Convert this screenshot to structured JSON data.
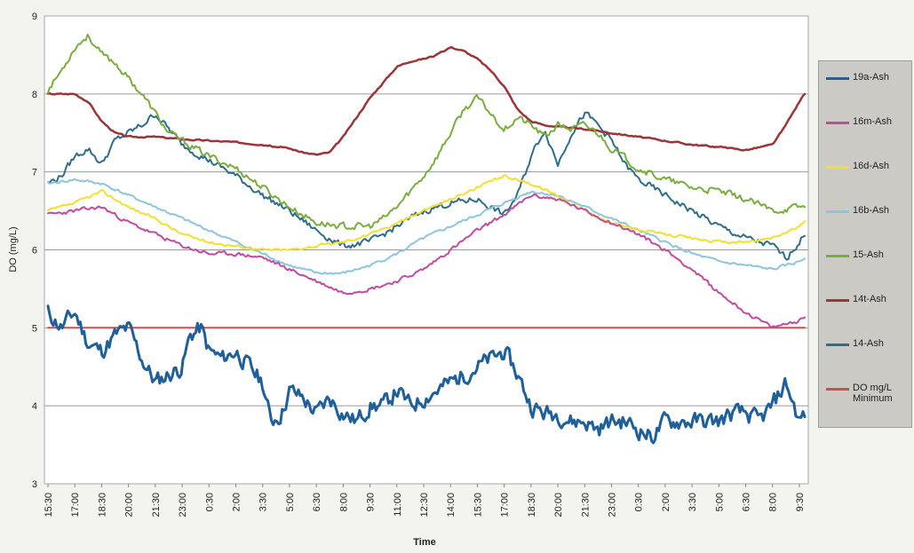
{
  "chart_data": {
    "type": "line",
    "xlabel": "Time",
    "ylabel": "DO (mg/L)",
    "ylim": [
      3,
      9
    ],
    "yticks": [
      3,
      4,
      5,
      6,
      7,
      8,
      9
    ],
    "grid": "horizontal",
    "legend_position": "right",
    "x_tick_labels": [
      "15:30",
      "17:00",
      "18:30",
      "20:00",
      "21:30",
      "23:00",
      "0:30",
      "2:00",
      "3:30",
      "5:00",
      "6:30",
      "8:00",
      "9:30",
      "11:00",
      "12:30",
      "14:00",
      "15:30",
      "17:00",
      "18:30",
      "20:00",
      "21:30",
      "23:00",
      "0:30",
      "2:00",
      "3:30",
      "5:00",
      "6:30",
      "8:00",
      "9:30"
    ],
    "x_label_positions": [
      0,
      1,
      2,
      3,
      4,
      5,
      6,
      7,
      8,
      9,
      10,
      11,
      12,
      13,
      14,
      15,
      16,
      17,
      18,
      19,
      20,
      21,
      22,
      23,
      24,
      25,
      26,
      27,
      28
    ],
    "x_range": [
      0,
      28.2
    ],
    "series": [
      {
        "name": "19a-Ash",
        "color": "#1f5f9a",
        "width": 3,
        "noise": 0.18,
        "seed": 11,
        "points": [
          [
            0,
            5.2
          ],
          [
            0.5,
            5.0
          ],
          [
            1,
            5.2
          ],
          [
            1.5,
            4.8
          ],
          [
            2,
            4.7
          ],
          [
            2.5,
            4.9
          ],
          [
            3,
            5.0
          ],
          [
            3.5,
            4.6
          ],
          [
            4,
            4.3
          ],
          [
            4.5,
            4.4
          ],
          [
            5,
            4.5
          ],
          [
            5.3,
            4.9
          ],
          [
            5.7,
            5.0
          ],
          [
            6,
            4.7
          ],
          [
            6.5,
            4.6
          ],
          [
            7,
            4.7
          ],
          [
            7.5,
            4.5
          ],
          [
            8,
            4.3
          ],
          [
            8.3,
            3.8
          ],
          [
            8.7,
            3.9
          ],
          [
            9,
            4.2
          ],
          [
            9.5,
            4.1
          ],
          [
            10,
            3.9
          ],
          [
            10.5,
            4.1
          ],
          [
            11,
            3.9
          ],
          [
            11.5,
            3.8
          ],
          [
            12,
            4.0
          ],
          [
            12.5,
            4.0
          ],
          [
            13,
            4.2
          ],
          [
            13.5,
            4.0
          ],
          [
            14,
            4.1
          ],
          [
            14.5,
            4.2
          ],
          [
            15,
            4.3
          ],
          [
            15.5,
            4.4
          ],
          [
            16,
            4.5
          ],
          [
            16.5,
            4.6
          ],
          [
            17,
            4.7
          ],
          [
            17.5,
            4.4
          ],
          [
            18,
            4.0
          ],
          [
            18.5,
            3.9
          ],
          [
            19,
            3.9
          ],
          [
            19.5,
            3.8
          ],
          [
            20,
            3.8
          ],
          [
            20.5,
            3.7
          ],
          [
            21,
            3.8
          ],
          [
            21.5,
            3.8
          ],
          [
            22,
            3.7
          ],
          [
            22.5,
            3.6
          ],
          [
            23,
            3.8
          ],
          [
            23.5,
            3.8
          ],
          [
            24,
            3.8
          ],
          [
            24.5,
            3.8
          ],
          [
            25,
            3.8
          ],
          [
            25.5,
            3.9
          ],
          [
            26,
            3.9
          ],
          [
            26.5,
            3.8
          ],
          [
            27,
            4.0
          ],
          [
            27.5,
            4.3
          ],
          [
            28,
            3.8
          ],
          [
            28.2,
            3.9
          ]
        ]
      },
      {
        "name": "16m-Ash",
        "color": "#c24aa0",
        "width": 2,
        "noise": 0.04,
        "seed": 23,
        "points": [
          [
            0,
            6.45
          ],
          [
            1,
            6.5
          ],
          [
            2,
            6.55
          ],
          [
            3,
            6.35
          ],
          [
            4,
            6.2
          ],
          [
            5,
            6.05
          ],
          [
            6,
            5.95
          ],
          [
            7,
            5.95
          ],
          [
            8,
            5.9
          ],
          [
            9,
            5.75
          ],
          [
            10,
            5.6
          ],
          [
            11,
            5.45
          ],
          [
            12,
            5.5
          ],
          [
            13,
            5.6
          ],
          [
            14,
            5.75
          ],
          [
            15,
            6.0
          ],
          [
            16,
            6.25
          ],
          [
            17,
            6.45
          ],
          [
            18,
            6.7
          ],
          [
            19,
            6.65
          ],
          [
            20,
            6.5
          ],
          [
            21,
            6.35
          ],
          [
            22,
            6.2
          ],
          [
            23,
            6.0
          ],
          [
            24,
            5.75
          ],
          [
            25,
            5.45
          ],
          [
            26,
            5.2
          ],
          [
            27,
            5.0
          ],
          [
            28,
            5.1
          ],
          [
            28.2,
            5.15
          ]
        ]
      },
      {
        "name": "16d-Ash",
        "color": "#f2df30",
        "width": 2,
        "noise": 0.03,
        "seed": 37,
        "points": [
          [
            0,
            6.5
          ],
          [
            1,
            6.6
          ],
          [
            2,
            6.75
          ],
          [
            3,
            6.55
          ],
          [
            4,
            6.4
          ],
          [
            5,
            6.2
          ],
          [
            6,
            6.1
          ],
          [
            7,
            6.05
          ],
          [
            8,
            6.0
          ],
          [
            9,
            6.0
          ],
          [
            10,
            6.05
          ],
          [
            11,
            6.1
          ],
          [
            12,
            6.2
          ],
          [
            13,
            6.35
          ],
          [
            14,
            6.5
          ],
          [
            15,
            6.65
          ],
          [
            16,
            6.8
          ],
          [
            17,
            6.95
          ],
          [
            18,
            6.85
          ],
          [
            19,
            6.7
          ],
          [
            20,
            6.5
          ],
          [
            21,
            6.35
          ],
          [
            22,
            6.25
          ],
          [
            23,
            6.2
          ],
          [
            24,
            6.15
          ],
          [
            25,
            6.1
          ],
          [
            26,
            6.1
          ],
          [
            27,
            6.15
          ],
          [
            28,
            6.3
          ],
          [
            28.2,
            6.35
          ]
        ]
      },
      {
        "name": "16b-Ash",
        "color": "#8dc5df",
        "width": 2,
        "noise": 0.03,
        "seed": 41,
        "points": [
          [
            0,
            6.85
          ],
          [
            1,
            6.9
          ],
          [
            2,
            6.85
          ],
          [
            3,
            6.7
          ],
          [
            4,
            6.55
          ],
          [
            5,
            6.4
          ],
          [
            6,
            6.25
          ],
          [
            7,
            6.1
          ],
          [
            8,
            5.95
          ],
          [
            9,
            5.8
          ],
          [
            10,
            5.7
          ],
          [
            11,
            5.7
          ],
          [
            12,
            5.8
          ],
          [
            13,
            5.95
          ],
          [
            14,
            6.15
          ],
          [
            15,
            6.3
          ],
          [
            16,
            6.45
          ],
          [
            17,
            6.6
          ],
          [
            18,
            6.75
          ],
          [
            19,
            6.7
          ],
          [
            20,
            6.55
          ],
          [
            21,
            6.4
          ],
          [
            22,
            6.25
          ],
          [
            23,
            6.1
          ],
          [
            24,
            5.95
          ],
          [
            25,
            5.85
          ],
          [
            26,
            5.8
          ],
          [
            27,
            5.75
          ],
          [
            28,
            5.85
          ],
          [
            28.2,
            5.9
          ]
        ]
      },
      {
        "name": "15-Ash",
        "color": "#79ad3f",
        "width": 2,
        "noise": 0.07,
        "seed": 53,
        "points": [
          [
            0,
            8.05
          ],
          [
            0.5,
            8.3
          ],
          [
            1,
            8.6
          ],
          [
            1.5,
            8.75
          ],
          [
            2,
            8.5
          ],
          [
            2.5,
            8.4
          ],
          [
            3,
            8.2
          ],
          [
            3.5,
            8.0
          ],
          [
            4,
            7.75
          ],
          [
            4.5,
            7.5
          ],
          [
            5,
            7.4
          ],
          [
            5.5,
            7.3
          ],
          [
            6,
            7.2
          ],
          [
            7,
            7.05
          ],
          [
            8,
            6.8
          ],
          [
            9,
            6.55
          ],
          [
            10,
            6.35
          ],
          [
            11,
            6.3
          ],
          [
            12,
            6.3
          ],
          [
            12.5,
            6.4
          ],
          [
            13,
            6.55
          ],
          [
            13.5,
            6.75
          ],
          [
            14,
            6.95
          ],
          [
            14.5,
            7.2
          ],
          [
            15,
            7.5
          ],
          [
            15.5,
            7.8
          ],
          [
            16,
            7.95
          ],
          [
            16.5,
            7.75
          ],
          [
            17,
            7.55
          ],
          [
            17.5,
            7.7
          ],
          [
            18,
            7.6
          ],
          [
            18.5,
            7.45
          ],
          [
            19,
            7.6
          ],
          [
            19.5,
            7.55
          ],
          [
            20,
            7.6
          ],
          [
            20.5,
            7.5
          ],
          [
            21,
            7.3
          ],
          [
            22,
            7.05
          ],
          [
            23,
            6.9
          ],
          [
            24,
            6.8
          ],
          [
            25,
            6.75
          ],
          [
            26,
            6.65
          ],
          [
            27,
            6.5
          ],
          [
            28,
            6.55
          ],
          [
            28.2,
            6.55
          ]
        ]
      },
      {
        "name": "14t-Ash",
        "color": "#9c3538",
        "width": 2.5,
        "noise": 0.015,
        "seed": 67,
        "points": [
          [
            0,
            8.0
          ],
          [
            1,
            8.0
          ],
          [
            1.5,
            7.9
          ],
          [
            2,
            7.65
          ],
          [
            2.5,
            7.5
          ],
          [
            3,
            7.45
          ],
          [
            4,
            7.45
          ],
          [
            5,
            7.42
          ],
          [
            6,
            7.4
          ],
          [
            7,
            7.38
          ],
          [
            8,
            7.35
          ],
          [
            9,
            7.3
          ],
          [
            9.5,
            7.25
          ],
          [
            10,
            7.22
          ],
          [
            10.5,
            7.25
          ],
          [
            11,
            7.45
          ],
          [
            11.5,
            7.7
          ],
          [
            12,
            7.95
          ],
          [
            12.5,
            8.15
          ],
          [
            13,
            8.35
          ],
          [
            13.5,
            8.42
          ],
          [
            14,
            8.45
          ],
          [
            14.5,
            8.5
          ],
          [
            15,
            8.6
          ],
          [
            15.5,
            8.55
          ],
          [
            16,
            8.45
          ],
          [
            16.5,
            8.3
          ],
          [
            17,
            8.1
          ],
          [
            17.5,
            7.8
          ],
          [
            18,
            7.65
          ],
          [
            18.5,
            7.6
          ],
          [
            19,
            7.58
          ],
          [
            20,
            7.55
          ],
          [
            21,
            7.5
          ],
          [
            22,
            7.45
          ],
          [
            23,
            7.4
          ],
          [
            24,
            7.35
          ],
          [
            25,
            7.32
          ],
          [
            26,
            7.28
          ],
          [
            27,
            7.35
          ],
          [
            27.5,
            7.6
          ],
          [
            28,
            7.9
          ],
          [
            28.2,
            8.0
          ]
        ]
      },
      {
        "name": "14-Ash",
        "color": "#2f6e8a",
        "width": 2,
        "noise": 0.07,
        "seed": 79,
        "points": [
          [
            0,
            6.85
          ],
          [
            0.5,
            6.95
          ],
          [
            1,
            7.2
          ],
          [
            1.5,
            7.3
          ],
          [
            2,
            7.1
          ],
          [
            2.5,
            7.4
          ],
          [
            3,
            7.5
          ],
          [
            3.5,
            7.6
          ],
          [
            4,
            7.75
          ],
          [
            4.5,
            7.55
          ],
          [
            5,
            7.35
          ],
          [
            6,
            7.15
          ],
          [
            7,
            6.95
          ],
          [
            8,
            6.7
          ],
          [
            9,
            6.5
          ],
          [
            10,
            6.25
          ],
          [
            11,
            6.05
          ],
          [
            12,
            6.1
          ],
          [
            13,
            6.3
          ],
          [
            14,
            6.5
          ],
          [
            15,
            6.6
          ],
          [
            16,
            6.65
          ],
          [
            16.5,
            6.55
          ],
          [
            17,
            6.45
          ],
          [
            17.5,
            6.7
          ],
          [
            18,
            7.2
          ],
          [
            18.5,
            7.55
          ],
          [
            19,
            7.1
          ],
          [
            19.5,
            7.5
          ],
          [
            20,
            7.75
          ],
          [
            20.5,
            7.6
          ],
          [
            21,
            7.4
          ],
          [
            21.5,
            7.1
          ],
          [
            22,
            6.9
          ],
          [
            23,
            6.7
          ],
          [
            24,
            6.5
          ],
          [
            25,
            6.3
          ],
          [
            26,
            6.15
          ],
          [
            27,
            6.05
          ],
          [
            27.5,
            5.9
          ],
          [
            28,
            6.1
          ],
          [
            28.2,
            6.2
          ]
        ]
      },
      {
        "name": "DO mg/L Minimum",
        "color": "#d9474f",
        "width": 2,
        "noise": 0,
        "seed": 0,
        "points": [
          [
            0,
            5.0
          ],
          [
            28.2,
            5.0
          ]
        ]
      }
    ]
  }
}
